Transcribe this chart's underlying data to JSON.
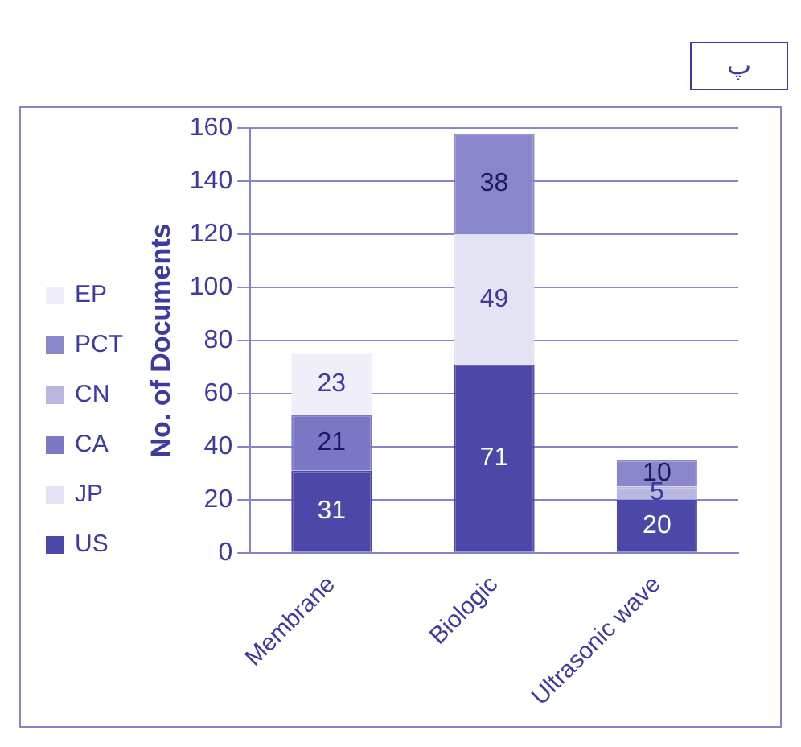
{
  "chart_data": {
    "type": "bar",
    "stacked": true,
    "annotations": [
      "پ"
    ],
    "ylabel": "No. of Documents",
    "categories": [
      "Membrane",
      "Biologic",
      "Ultrasonic wave"
    ],
    "series": [
      {
        "name": "US",
        "color": "#4c48a8",
        "values": [
          31,
          71,
          20
        ]
      },
      {
        "name": "JP",
        "color": "#e4e3f3",
        "values": [
          null,
          49,
          null
        ]
      },
      {
        "name": "CA",
        "color": "#7b77c4",
        "values": [
          21,
          null,
          null
        ]
      },
      {
        "name": "CN",
        "color": "#b9b6e0",
        "values": [
          null,
          null,
          5
        ]
      },
      {
        "name": "PCT",
        "color": "#8a86cc",
        "values": [
          null,
          38,
          10
        ]
      },
      {
        "name": "EP",
        "color": "#efeef9",
        "values": [
          23,
          null,
          null
        ]
      }
    ],
    "ylim": [
      0,
      160
    ],
    "yticks": [
      0,
      20,
      40,
      60,
      80,
      100,
      120,
      140,
      160
    ],
    "grid": "y",
    "legend": "left",
    "data_labels": true
  }
}
